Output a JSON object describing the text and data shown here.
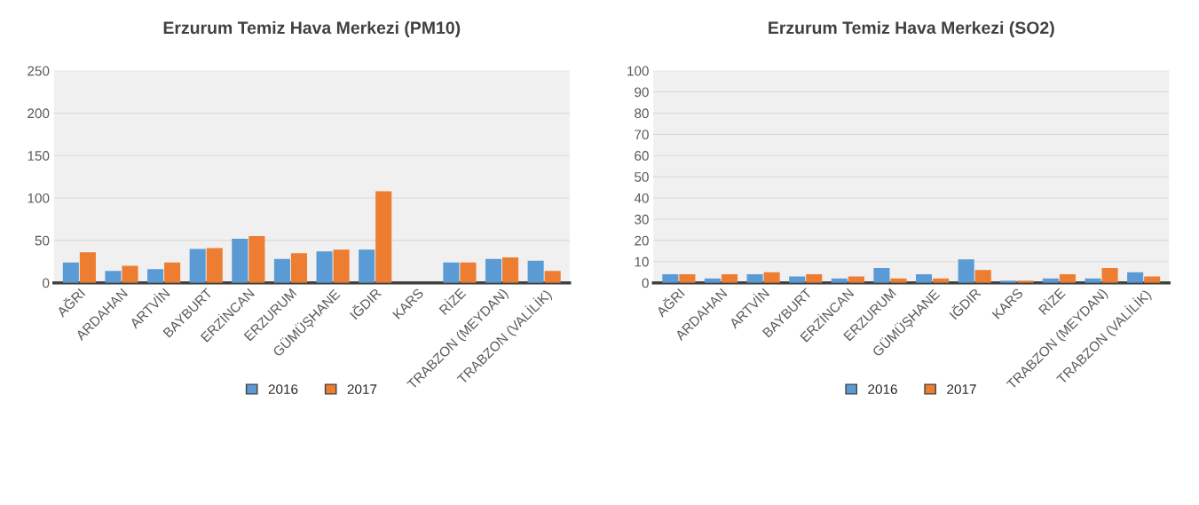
{
  "chart_data": [
    {
      "type": "bar",
      "title": "Erzurum Temiz Hava Merkezi (PM10)",
      "categories": [
        "AĞRI",
        "ARDAHAN",
        "ARTVİN",
        "BAYBURT",
        "ERZİNCAN",
        "ERZURUM",
        "GÜMÜŞHANE",
        "IĞDIR",
        "KARS",
        "RİZE",
        "TRABZON (MEYDAN)",
        "TRABZON (VALİLİK)"
      ],
      "series": [
        {
          "name": "2016",
          "color": "#5b9bd5",
          "values": [
            24,
            14,
            16,
            40,
            52,
            28,
            37,
            39,
            0,
            24,
            28,
            26
          ]
        },
        {
          "name": "2017",
          "color": "#ed7d31",
          "values": [
            36,
            20,
            24,
            41,
            55,
            35,
            39,
            108,
            0,
            24,
            30,
            14
          ]
        }
      ],
      "ylim": [
        0,
        250
      ],
      "yticks": [
        0,
        50,
        100,
        150,
        200,
        250
      ],
      "grid": "y",
      "legend": "bottom"
    },
    {
      "type": "bar",
      "title": "Erzurum Temiz Hava Merkezi (SO2)",
      "categories": [
        "AĞRI",
        "ARDAHAN",
        "ARTVİN",
        "BAYBURT",
        "ERZİNCAN",
        "ERZURUM",
        "GÜMÜŞHANE",
        "IĞDIR",
        "KARS",
        "RİZE",
        "TRABZON (MEYDAN)",
        "TRABZON (VALİLİK)"
      ],
      "series": [
        {
          "name": "2016",
          "color": "#5b9bd5",
          "values": [
            4,
            2,
            4,
            3,
            2,
            7,
            4,
            11,
            1,
            2,
            2,
            5
          ]
        },
        {
          "name": "2017",
          "color": "#ed7d31",
          "values": [
            4,
            4,
            5,
            4,
            3,
            2,
            2,
            6,
            1,
            4,
            7,
            3
          ]
        }
      ],
      "ylim": [
        0,
        100
      ],
      "yticks": [
        0,
        10,
        20,
        30,
        40,
        50,
        60,
        70,
        80,
        90,
        100
      ],
      "grid": "y",
      "legend": "bottom"
    }
  ]
}
